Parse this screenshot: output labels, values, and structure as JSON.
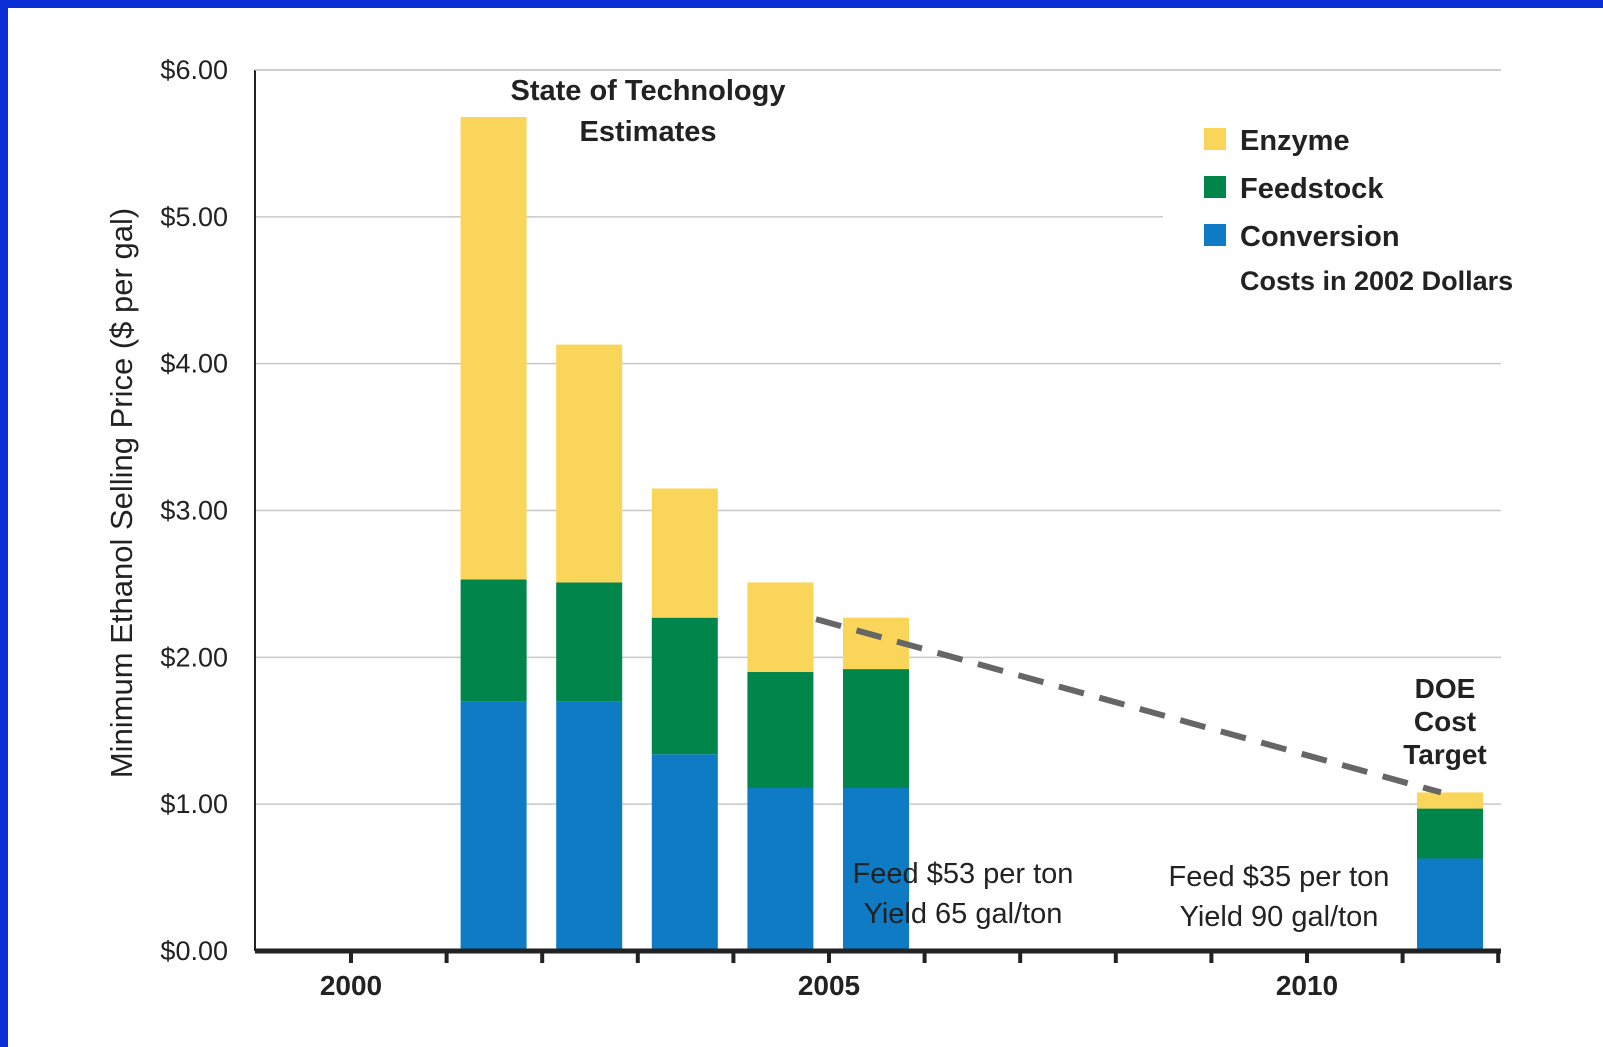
{
  "chart_data": {
    "type": "bar",
    "stacked": true,
    "title": "State of Technology Estimates",
    "ylabel": "Minimum Ethanol Selling Price ($ per gal)",
    "ylim": [
      0,
      6
    ],
    "xlim": [
      2000,
      2013
    ],
    "yticks": [
      "$0.00",
      "$1.00",
      "$2.00",
      "$3.00",
      "$4.00",
      "$5.00",
      "$6.00"
    ],
    "xticks": [
      "2000",
      "2005",
      "2010"
    ],
    "grid": true,
    "x": [
      2001,
      2002,
      2003,
      2004,
      2005,
      2012
    ],
    "series": [
      {
        "name": "Conversion",
        "color": "#0f7bc4",
        "values": [
          1.7,
          1.7,
          1.34,
          1.11,
          1.11,
          0.63
        ]
      },
      {
        "name": "Feedstock",
        "color": "#00854a",
        "values": [
          0.83,
          0.81,
          0.93,
          0.79,
          0.81,
          0.34
        ]
      },
      {
        "name": "Enzyme",
        "color": "#f9d65a",
        "values": [
          3.15,
          1.62,
          0.88,
          0.61,
          0.35,
          0.11
        ]
      }
    ],
    "legend": {
      "position": "top-right",
      "order": [
        "Enzyme",
        "Feedstock",
        "Conversion"
      ],
      "note": "Costs in 2002 Dollars"
    },
    "trend_line": {
      "from": [
        2005,
        2.26
      ],
      "to": [
        2012,
        1.08
      ],
      "style": "dashed",
      "color": "#666666"
    },
    "annotations": {
      "doe_target": [
        "DOE",
        "Cost",
        "Target"
      ],
      "feed_2005": [
        "Feed $53 per ton",
        "Yield 65 gal/ton"
      ],
      "feed_2012": [
        "Feed $35 per ton",
        "Yield 90 gal/ton"
      ]
    }
  }
}
